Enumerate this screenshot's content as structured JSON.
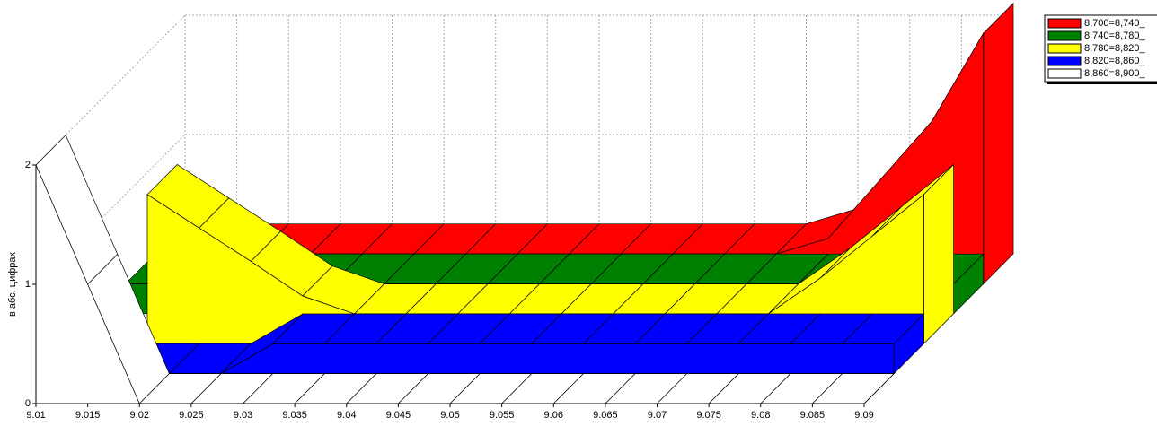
{
  "chart_data": {
    "type": "area3d",
    "y_label": "в абс. цифрах",
    "x": [
      9.01,
      9.015,
      9.02,
      9.025,
      9.03,
      9.035,
      9.04,
      9.045,
      9.05,
      9.055,
      9.06,
      9.065,
      9.07,
      9.075,
      9.08,
      9.085,
      9.09
    ],
    "xlim": [
      9.01,
      9.09
    ],
    "xticks": [
      9.01,
      9.015,
      9.02,
      9.025,
      9.03,
      9.035,
      9.04,
      9.045,
      9.05,
      9.055,
      9.06,
      9.065,
      9.07,
      9.075,
      9.08,
      9.085,
      9.09
    ],
    "ylim": [
      0,
      2
    ],
    "yticks": [
      0,
      1,
      2
    ],
    "grid": true,
    "legend": "top-right",
    "series": [
      {
        "name": "8,700=8,740_",
        "color": "#ff0000",
        "values": [
          0.25,
          0.25,
          0.25,
          0.25,
          0.25,
          0.25,
          0.25,
          0.25,
          0.25,
          0.25,
          0.25,
          0.25,
          0.25,
          0.38,
          0.87,
          1.36,
          2.1
        ]
      },
      {
        "name": "8,740=8,780_",
        "color": "#008000",
        "values": [
          0.25,
          0.25,
          0.25,
          0.25,
          0.25,
          0.25,
          0.25,
          0.25,
          0.25,
          0.25,
          0.25,
          0.25,
          0.25,
          0.25,
          0.25,
          0.25,
          0.25
        ]
      },
      {
        "name": "8,780=8,820_",
        "color": "#ffff00",
        "values": [
          null,
          1.25,
          0.97,
          0.69,
          0.4,
          0.25,
          0.25,
          0.25,
          0.25,
          0.25,
          0.25,
          0.25,
          0.25,
          0.25,
          0.55,
          0.9,
          1.25
        ]
      },
      {
        "name": "8,820=8,860_",
        "color": "#0000ff",
        "values": [
          0,
          0,
          0,
          0,
          0.25,
          0.25,
          0.25,
          0.25,
          0.25,
          0.25,
          0.25,
          0.25,
          0.25,
          0.25,
          0.25,
          0.25,
          0.25
        ]
      },
      {
        "name": "8,860=8,900_",
        "color": "#ffffff",
        "values": [
          2,
          1,
          0,
          0,
          0,
          0,
          0,
          0,
          0,
          0,
          0,
          0,
          0,
          0,
          0,
          0,
          0
        ]
      }
    ]
  }
}
